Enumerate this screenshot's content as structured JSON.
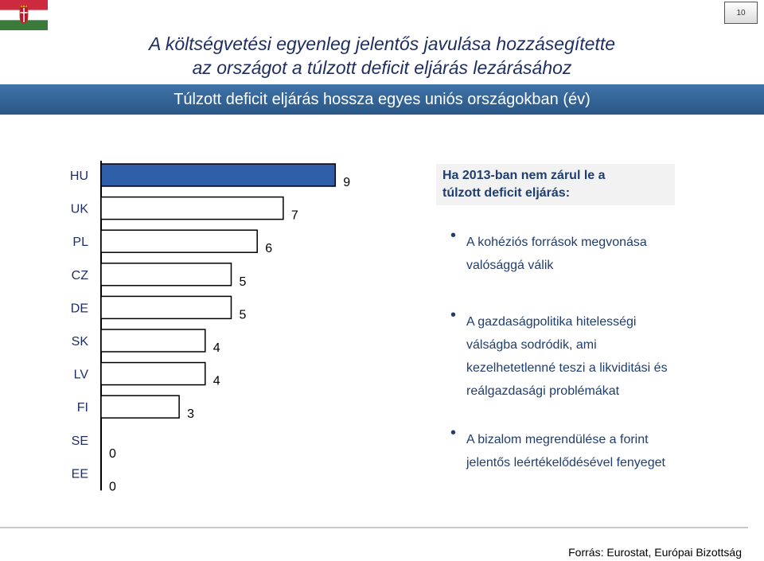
{
  "page": {
    "number": "10",
    "title_line1": "A költségvetési egyenleg jelentős javulása hozzásegítette",
    "title_line2": "az országot a túlzott deficit eljárás lezárásához",
    "subtitle": "Túlzott deficit eljárás hossza egyes uniós országokban (év)",
    "source": "Forrás: Eurostat, Európai Bizottság",
    "flag_colors": {
      "red": "#cc2a3e",
      "white": "#ffffff",
      "green": "#3b7a3a"
    }
  },
  "chart_data": {
    "type": "bar",
    "orientation": "horizontal",
    "categories": [
      "HU",
      "UK",
      "PL",
      "CZ",
      "DE",
      "SK",
      "LV",
      "FI",
      "SE",
      "EE"
    ],
    "values": [
      9,
      7,
      6,
      5,
      5,
      4,
      4,
      3,
      0,
      0
    ],
    "highlight": "HU",
    "highlight_color": "#2e5fa8",
    "bar_color": "#ffffff",
    "bar_border": "#000000",
    "title": "Túlzott deficit eljárás hossza egyes uniós országokban (év)",
    "xlabel": "",
    "ylabel": "",
    "xlim": [
      0,
      9
    ],
    "grid": false,
    "legend": "none"
  },
  "panel": {
    "heading_line1": "Ha 2013-ban nem zárul le a",
    "heading_line2": "túlzott deficit eljárás:",
    "bullets": [
      {
        "lines": [
          "A kohéziós források megvonása",
          "valósággá válik"
        ]
      },
      {
        "lines": [
          "A gazdaságpolitika  hitelességi",
          "válságba sodródik, ami",
          "kezelhetetlenné  teszi a likviditási és",
          "reálgazdasági problémákat"
        ]
      },
      {
        "lines": [
          "A bizalom megrendülése a forint",
          "jelentős leértékelődésével fenyeget"
        ]
      }
    ]
  }
}
